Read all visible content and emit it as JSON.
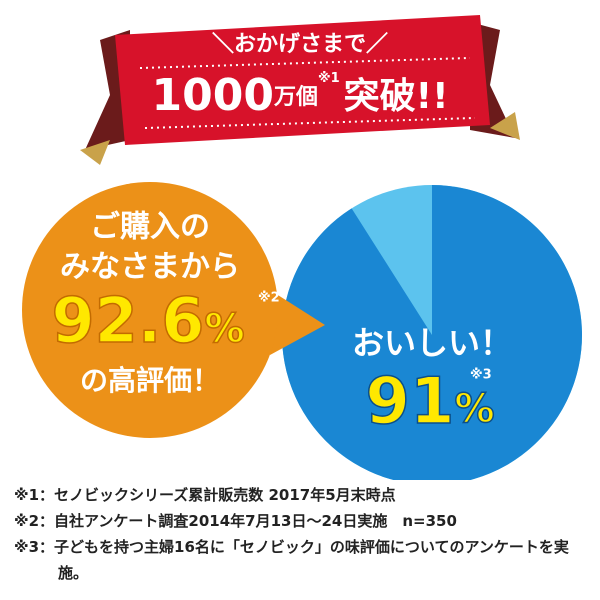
{
  "banner": {
    "lead": "＼おかげさまで／",
    "count": "1000",
    "unit": "万個",
    "note": "※1",
    "suffix": "突破!!"
  },
  "left_circle": {
    "line1": "ご購入の",
    "line2": "みなさまから",
    "value": "92.6",
    "unit": "%",
    "note": "※2",
    "line3": "の高評価！"
  },
  "right_circle": {
    "label": "おいしい！",
    "value": 91,
    "unit": "%",
    "note": "※3"
  },
  "footnotes": [
    "※1：セノビックシリーズ累計販売数 2017年5月末時点",
    "※2：自社アンケート調査2014年7月13日～24日実施　n=350",
    "※3：子どもを持つ主婦16名に「セノビック」の味評価についてのアンケートを実施。"
  ]
}
